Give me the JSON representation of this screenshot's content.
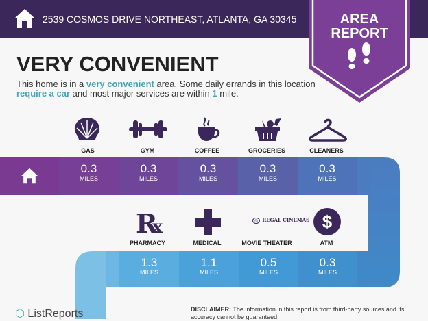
{
  "header": {
    "address": "2539 COSMOS DRIVE NORTHEAST, ATLANTA, GA 30345",
    "badge_line1": "AREA",
    "badge_line2": "REPORT"
  },
  "headline": "VERY CONVENIENT",
  "description": {
    "p1": "This home is in a ",
    "h1": "very convenient",
    "p2": " area. Some daily errands in this location ",
    "h2": "require a car",
    "p3": " and most major services are within ",
    "h3": "1",
    "p4": " mile."
  },
  "row1": [
    {
      "label": "GAS",
      "value": "0.3",
      "unit": "MILES"
    },
    {
      "label": "GYM",
      "value": "0.3",
      "unit": "MILES"
    },
    {
      "label": "COFFEE",
      "value": "0.3",
      "unit": "MILES"
    },
    {
      "label": "GROCERIES",
      "value": "0.3",
      "unit": "MILES"
    },
    {
      "label": "CLEANERS",
      "value": "0.3",
      "unit": "MILES"
    }
  ],
  "row2": [
    {
      "label": "PHARMACY",
      "value": "1.3",
      "unit": "MILES"
    },
    {
      "label": "MEDICAL",
      "value": "1.1",
      "unit": "MILES"
    },
    {
      "label": "MOVIE THEATER",
      "value": "0.5",
      "unit": "MILES",
      "logo": "REGAL CINEMAS"
    },
    {
      "label": "ATM",
      "value": "0.3",
      "unit": "MILES"
    }
  ],
  "footer": {
    "logo": "ListReports",
    "disclaimer_bold": "DISCLAIMER:",
    "disclaimer": " The information in this report is from third-party sources and its accuracy cannot be guaranteed."
  },
  "colors": {
    "header": "#3b2759",
    "badge": "#7b3f98",
    "accent": "#48a5b8"
  }
}
